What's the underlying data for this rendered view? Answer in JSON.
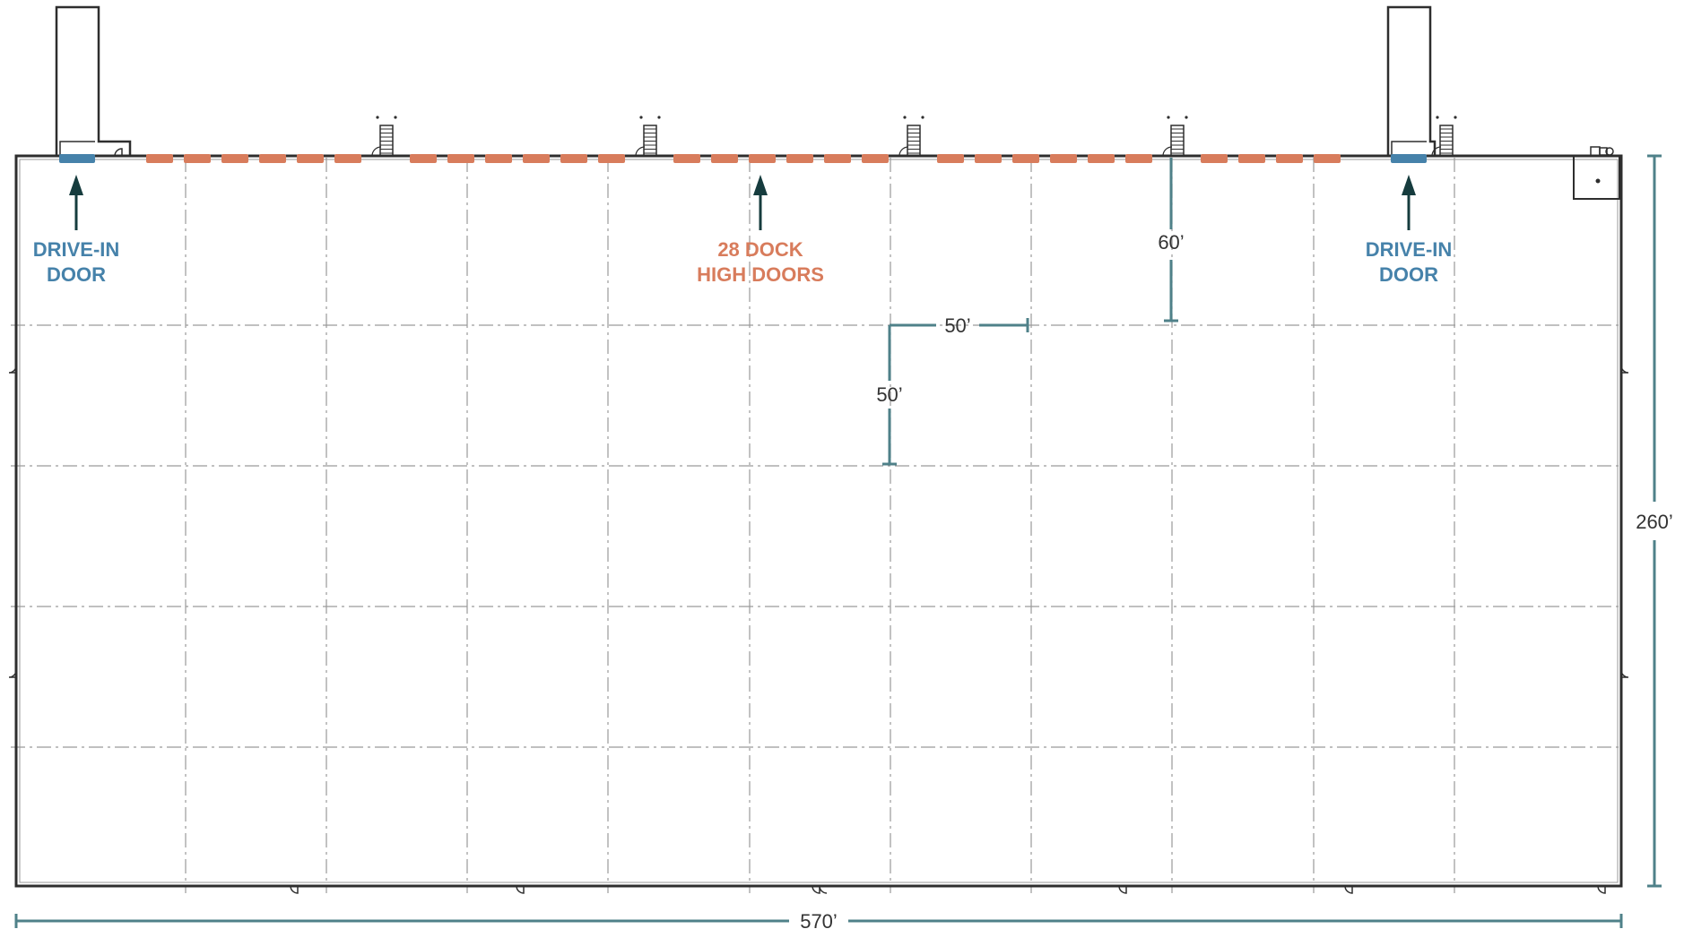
{
  "labels": {
    "drive_in_left": [
      "DRIVE-IN",
      "DOOR"
    ],
    "dock_doors": [
      "28 DOCK",
      "HIGH DOORS"
    ],
    "drive_in_right": [
      "DRIVE-IN",
      "DOOR"
    ]
  },
  "dimensions": {
    "building_width": "570’",
    "building_depth": "260’",
    "bay_width": "50’",
    "bay_depth": "50’",
    "speed_bay": "60’"
  },
  "colors": {
    "wall": "#2e2e2e",
    "grid": "#9a9a9a",
    "dock_door": "#d87c5c",
    "drive_in_door": "#4682aa",
    "dimension": "#4f8189",
    "arrow": "#163c3e"
  },
  "dock_door_count": 28,
  "drive_in_door_count": 2
}
